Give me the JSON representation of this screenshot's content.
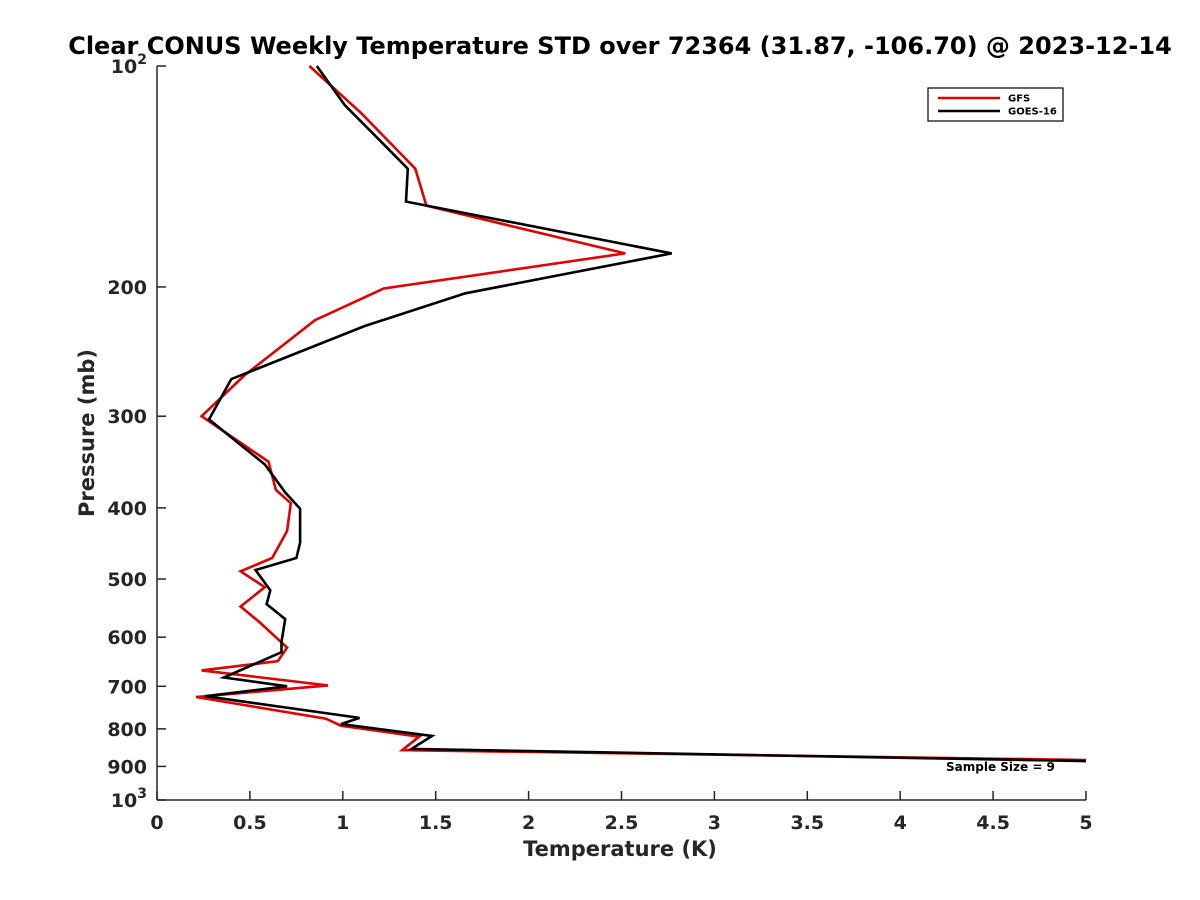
{
  "chart_data": {
    "type": "line",
    "title": "Clear CONUS Weekly Temperature STD over 72364 (31.87, -106.70) @ 2023-12-14",
    "xlabel": "Temperature (K)",
    "ylabel": "Pressure (mb)",
    "xlim": [
      0,
      5
    ],
    "ylim": [
      100,
      1000
    ],
    "y_scale": "log",
    "y_reversed": true,
    "grid": false,
    "legend_position": "top-right",
    "x_ticks": [
      "0",
      "0.5",
      "1",
      "1.5",
      "2",
      "2.5",
      "3",
      "3.5",
      "4",
      "4.5",
      "5"
    ],
    "y_ticks": [
      {
        "value": 100,
        "base": "10",
        "exp": "2"
      },
      {
        "value": 200,
        "label": "200"
      },
      {
        "value": 300,
        "label": "300"
      },
      {
        "value": 400,
        "label": "400"
      },
      {
        "value": 500,
        "label": "500"
      },
      {
        "value": 600,
        "label": "600"
      },
      {
        "value": 700,
        "label": "700"
      },
      {
        "value": 800,
        "label": "800"
      },
      {
        "value": 900,
        "label": "900"
      },
      {
        "value": 1000,
        "base": "10",
        "exp": "3"
      }
    ],
    "annotation": "Sample Size = 9",
    "series": [
      {
        "name": "GFS",
        "color": "#e00000",
        "points": [
          [
            0.82,
            100
          ],
          [
            1.1,
            116
          ],
          [
            1.39,
            138
          ],
          [
            1.45,
            155
          ],
          [
            2.52,
            180
          ],
          [
            1.22,
            201
          ],
          [
            0.85,
            222
          ],
          [
            0.47,
            264
          ],
          [
            0.24,
            300
          ],
          [
            0.6,
            346
          ],
          [
            0.64,
            378
          ],
          [
            0.72,
            394
          ],
          [
            0.7,
            430
          ],
          [
            0.62,
            468
          ],
          [
            0.45,
            488
          ],
          [
            0.58,
            513
          ],
          [
            0.45,
            545
          ],
          [
            0.55,
            572
          ],
          [
            0.7,
            620
          ],
          [
            0.65,
            647
          ],
          [
            0.24,
            666
          ],
          [
            0.92,
            698
          ],
          [
            0.21,
            724
          ],
          [
            0.91,
            775
          ],
          [
            0.99,
            792
          ],
          [
            1.41,
            820
          ],
          [
            1.32,
            855
          ],
          [
            5.0,
            882
          ]
        ]
      },
      {
        "name": "GOES-16",
        "color": "#000000",
        "points": [
          [
            0.86,
            100
          ],
          [
            1.01,
            113
          ],
          [
            1.35,
            138
          ],
          [
            1.34,
            153
          ],
          [
            2.77,
            180
          ],
          [
            1.66,
            204
          ],
          [
            1.12,
            226
          ],
          [
            0.4,
            267
          ],
          [
            0.28,
            303
          ],
          [
            0.58,
            349
          ],
          [
            0.69,
            381
          ],
          [
            0.77,
            401
          ],
          [
            0.77,
            446
          ],
          [
            0.75,
            468
          ],
          [
            0.53,
            486
          ],
          [
            0.61,
            518
          ],
          [
            0.59,
            541
          ],
          [
            0.69,
            567
          ],
          [
            0.67,
            609
          ],
          [
            0.67,
            629
          ],
          [
            0.36,
            681
          ],
          [
            0.7,
            700
          ],
          [
            0.26,
            722
          ],
          [
            1.09,
            773
          ],
          [
            0.99,
            788
          ],
          [
            1.48,
            818
          ],
          [
            1.37,
            852
          ],
          [
            5.0,
            885
          ]
        ]
      }
    ]
  }
}
